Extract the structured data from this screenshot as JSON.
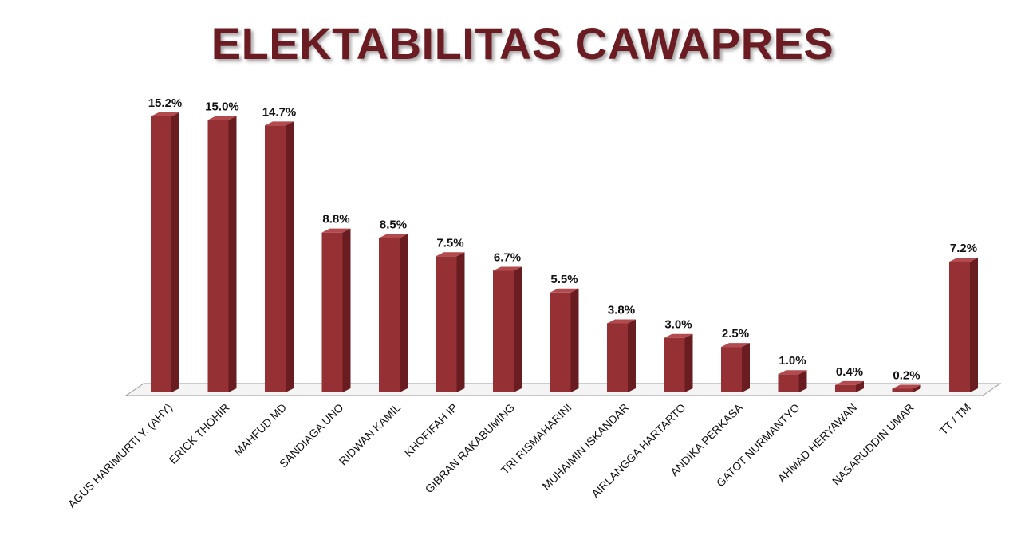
{
  "chart_data": {
    "type": "bar",
    "title": "ELEKTABILITAS CAWAPRES",
    "categories": [
      "AGUS HARIMURTI Y. (AHY)",
      "ERICK THOHIR",
      "MAHFUD MD",
      "SANDIAGA UNO",
      "RIDWAN KAMIL",
      "KHOFIFAH IP",
      "GIBRAN RAKABUMING",
      "TRI RISMAHARINI",
      "MUHAIMIN ISKANDAR",
      "AIRLANGGA HARTARTO",
      "ANDIKA PERKASA",
      "GATOT NURMANTYO",
      "AHMAD HERYAWAN",
      "NASARUDDIN UMAR",
      "TT / TM"
    ],
    "values": [
      15.2,
      15.0,
      14.7,
      8.8,
      8.5,
      7.5,
      6.7,
      5.5,
      3.8,
      3.0,
      2.5,
      1.0,
      0.4,
      0.2,
      7.2
    ],
    "value_labels": [
      "15.2%",
      "15.0%",
      "14.7%",
      "8.8%",
      "8.5%",
      "7.5%",
      "6.7%",
      "5.5%",
      "3.8%",
      "3.0%",
      "2.5%",
      "1.0%",
      "0.4%",
      "0.2%",
      "7.2%"
    ],
    "xlabel": "",
    "ylabel": "",
    "ylim": [
      0,
      15.2
    ],
    "grid": false,
    "legend": "none",
    "bar_color": "#953034",
    "bar_side_color": "#6a1d21",
    "bar_top_color": "#b34a4e",
    "title_color": "#6b1c22"
  }
}
